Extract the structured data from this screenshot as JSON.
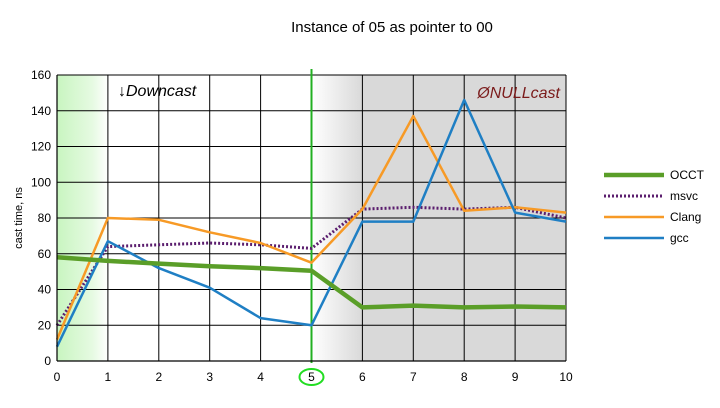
{
  "chart_data": {
    "type": "line",
    "title": "Instance of 05 as pointer to 00",
    "xlabel": "",
    "ylabel": "cast time, ns",
    "xlim": [
      0,
      10
    ],
    "ylim": [
      0,
      160
    ],
    "x": [
      0,
      1,
      2,
      3,
      4,
      5,
      6,
      7,
      8,
      9,
      10
    ],
    "x_ticks": [
      "0",
      "1",
      "2",
      "3",
      "4",
      "5",
      "6",
      "7",
      "8",
      "9",
      "10"
    ],
    "y_ticks": [
      "0",
      "20",
      "40",
      "60",
      "80",
      "100",
      "120",
      "140",
      "160"
    ],
    "grid": true,
    "legend_position": "right",
    "highlighted_x": 5,
    "series": [
      {
        "name": "OCCT",
        "color": "#5a9e28",
        "style": "solid",
        "values": [
          58,
          56,
          54.5,
          53,
          52,
          50.5,
          30,
          31,
          30,
          30.5,
          30
        ]
      },
      {
        "name": "msvc",
        "color": "#5b1e6e",
        "style": "dotted",
        "values": [
          20,
          64,
          65,
          66,
          65,
          63,
          85,
          86,
          85,
          86,
          80
        ]
      },
      {
        "name": "Clang",
        "color": "#f79a26",
        "style": "solid",
        "values": [
          12,
          80,
          79,
          72,
          66,
          55,
          85,
          137,
          84,
          86,
          83
        ]
      },
      {
        "name": "gcc",
        "color": "#1f7fc4",
        "style": "solid",
        "values": [
          8,
          67,
          52,
          41,
          24,
          20,
          78,
          78,
          146,
          83,
          78
        ]
      }
    ],
    "annotations": [
      {
        "text": "↓Downcast",
        "color": "#000000"
      },
      {
        "text": "ØNULLcast",
        "color": "#7a1a1a"
      }
    ]
  }
}
